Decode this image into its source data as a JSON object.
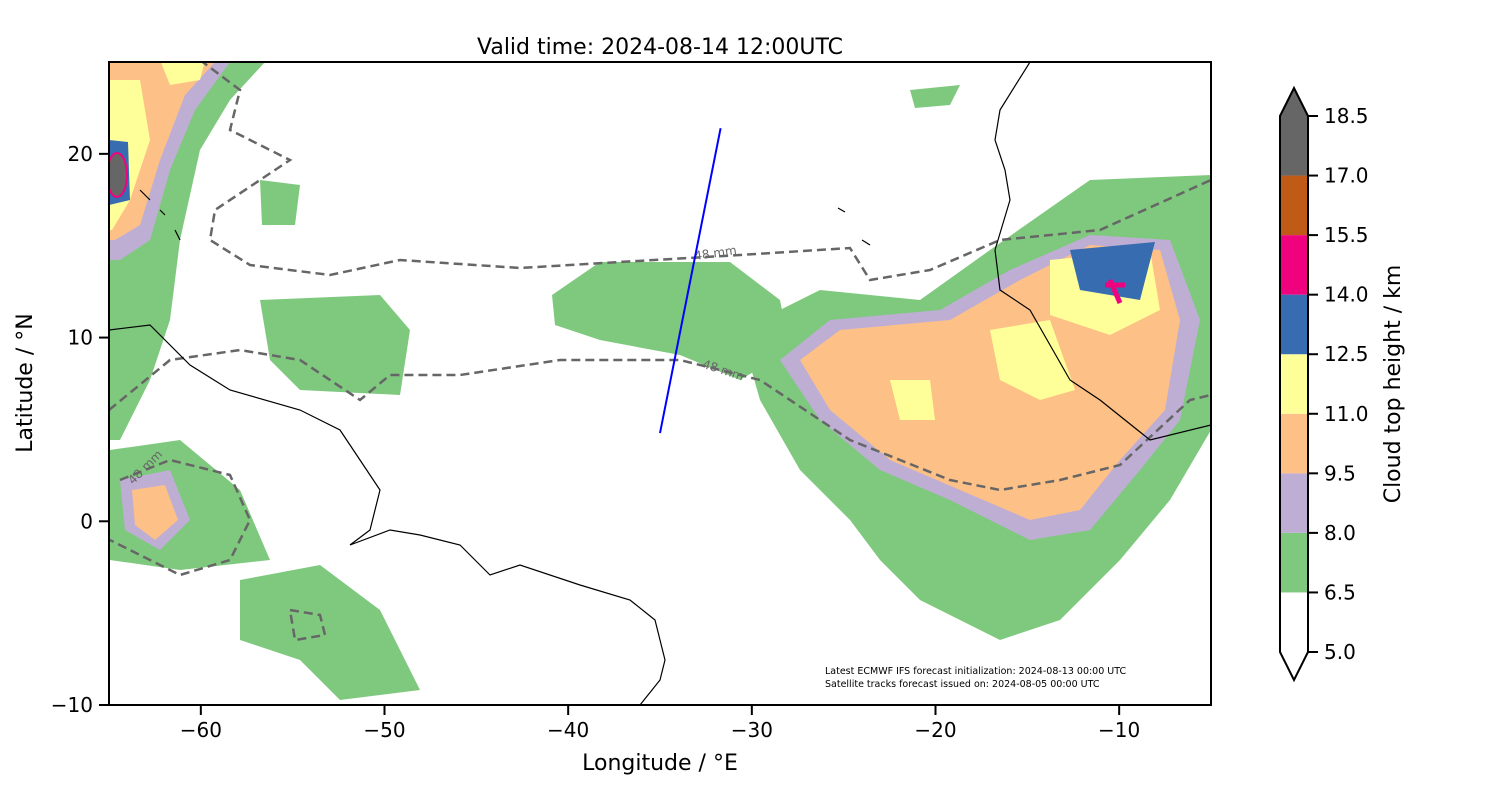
{
  "chart_data": {
    "type": "heatmap",
    "title": "Valid time: 2024-08-14 12:00UTC",
    "xlabel": "Longitude / °E",
    "ylabel": "Latitude / °N",
    "xlim": [
      -65,
      -5
    ],
    "ylim": [
      -10,
      25
    ],
    "xticks": [
      -60,
      -50,
      -40,
      -30,
      -20,
      -10
    ],
    "xtick_labels": [
      "−60",
      "−50",
      "−40",
      "−30",
      "−20",
      "−10"
    ],
    "yticks": [
      -10,
      0,
      10,
      20
    ],
    "ytick_labels": [
      "−10",
      "0",
      "10",
      "20"
    ],
    "colorbar": {
      "label": "Cloud top height / km",
      "levels": [
        5.0,
        6.5,
        8.0,
        9.5,
        11.0,
        12.5,
        14.0,
        15.5,
        17.0,
        18.5
      ],
      "level_labels": [
        "5.0",
        "6.5",
        "8.0",
        "9.5",
        "11.0",
        "12.5",
        "14.0",
        "15.5",
        "17.0",
        "18.5"
      ],
      "colors": [
        "#ffffff",
        "#7fc97f",
        "#beaed4",
        "#fdc086",
        "#ffff99",
        "#386cb0",
        "#f0027f",
        "#bf5b17",
        "#666666"
      ],
      "extend": "both"
    },
    "contour_label": "48 mm",
    "satellite_track": {
      "start": [
        -35.0,
        4.8
      ],
      "end": [
        -31.7,
        21.4
      ],
      "color": "#0000ff"
    },
    "annotation": [
      "Latest ECMWF IFS forecast initialization: 2024-08-13 00:00 UTC",
      "Satellite tracks forecast issued on: 2024-08-05 00:00 UTC"
    ]
  }
}
